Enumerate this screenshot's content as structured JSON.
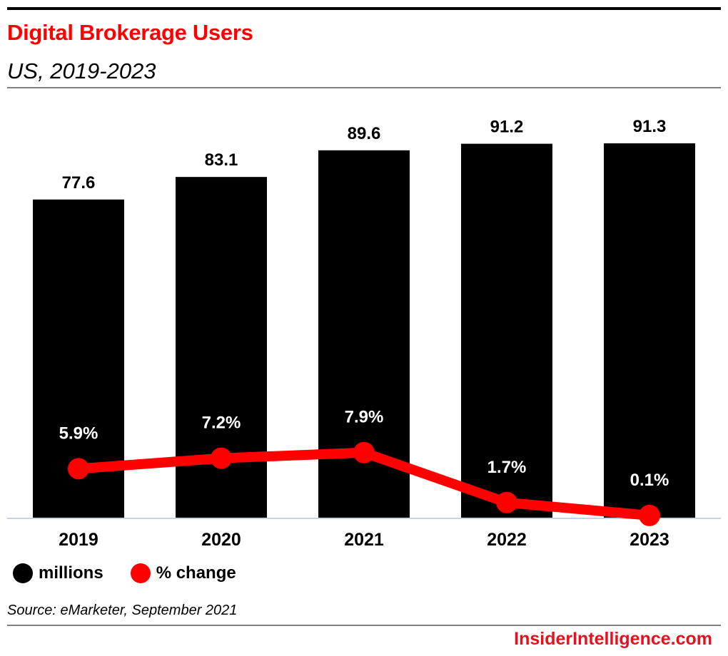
{
  "header": {
    "title": "Digital Brokerage Users",
    "subtitle": "US, 2019-2023"
  },
  "legend": {
    "items": [
      {
        "label": "millions",
        "color": "#000000"
      },
      {
        "label": "% change",
        "color": "#ff0000"
      }
    ]
  },
  "footer": {
    "source": "Source: eMarketer, September 2021",
    "brand": "InsiderIntelligence.com"
  },
  "colors": {
    "title": "#ff0000",
    "bar": "#000000",
    "line": "#ff0000",
    "axis": "#c5d3e6",
    "brand": "#e8101f"
  },
  "chart_data": {
    "type": "bar",
    "title": "Digital Brokerage Users",
    "subtitle": "US, 2019-2023",
    "categories": [
      "2019",
      "2020",
      "2021",
      "2022",
      "2023"
    ],
    "series": [
      {
        "name": "millions",
        "type": "bar",
        "values": [
          77.6,
          83.1,
          89.6,
          91.2,
          91.3
        ],
        "labels": [
          "77.6",
          "83.1",
          "89.6",
          "91.2",
          "91.3"
        ]
      },
      {
        "name": "% change",
        "type": "line",
        "values": [
          5.9,
          7.2,
          7.9,
          1.7,
          0.1
        ],
        "labels": [
          "5.9%",
          "7.2%",
          "7.9%",
          "1.7%",
          "0.1%"
        ]
      }
    ],
    "xlabel": "",
    "ylabel": "",
    "ylim": [
      0,
      91.3
    ],
    "grid": false,
    "legend_position": "bottom-left"
  }
}
